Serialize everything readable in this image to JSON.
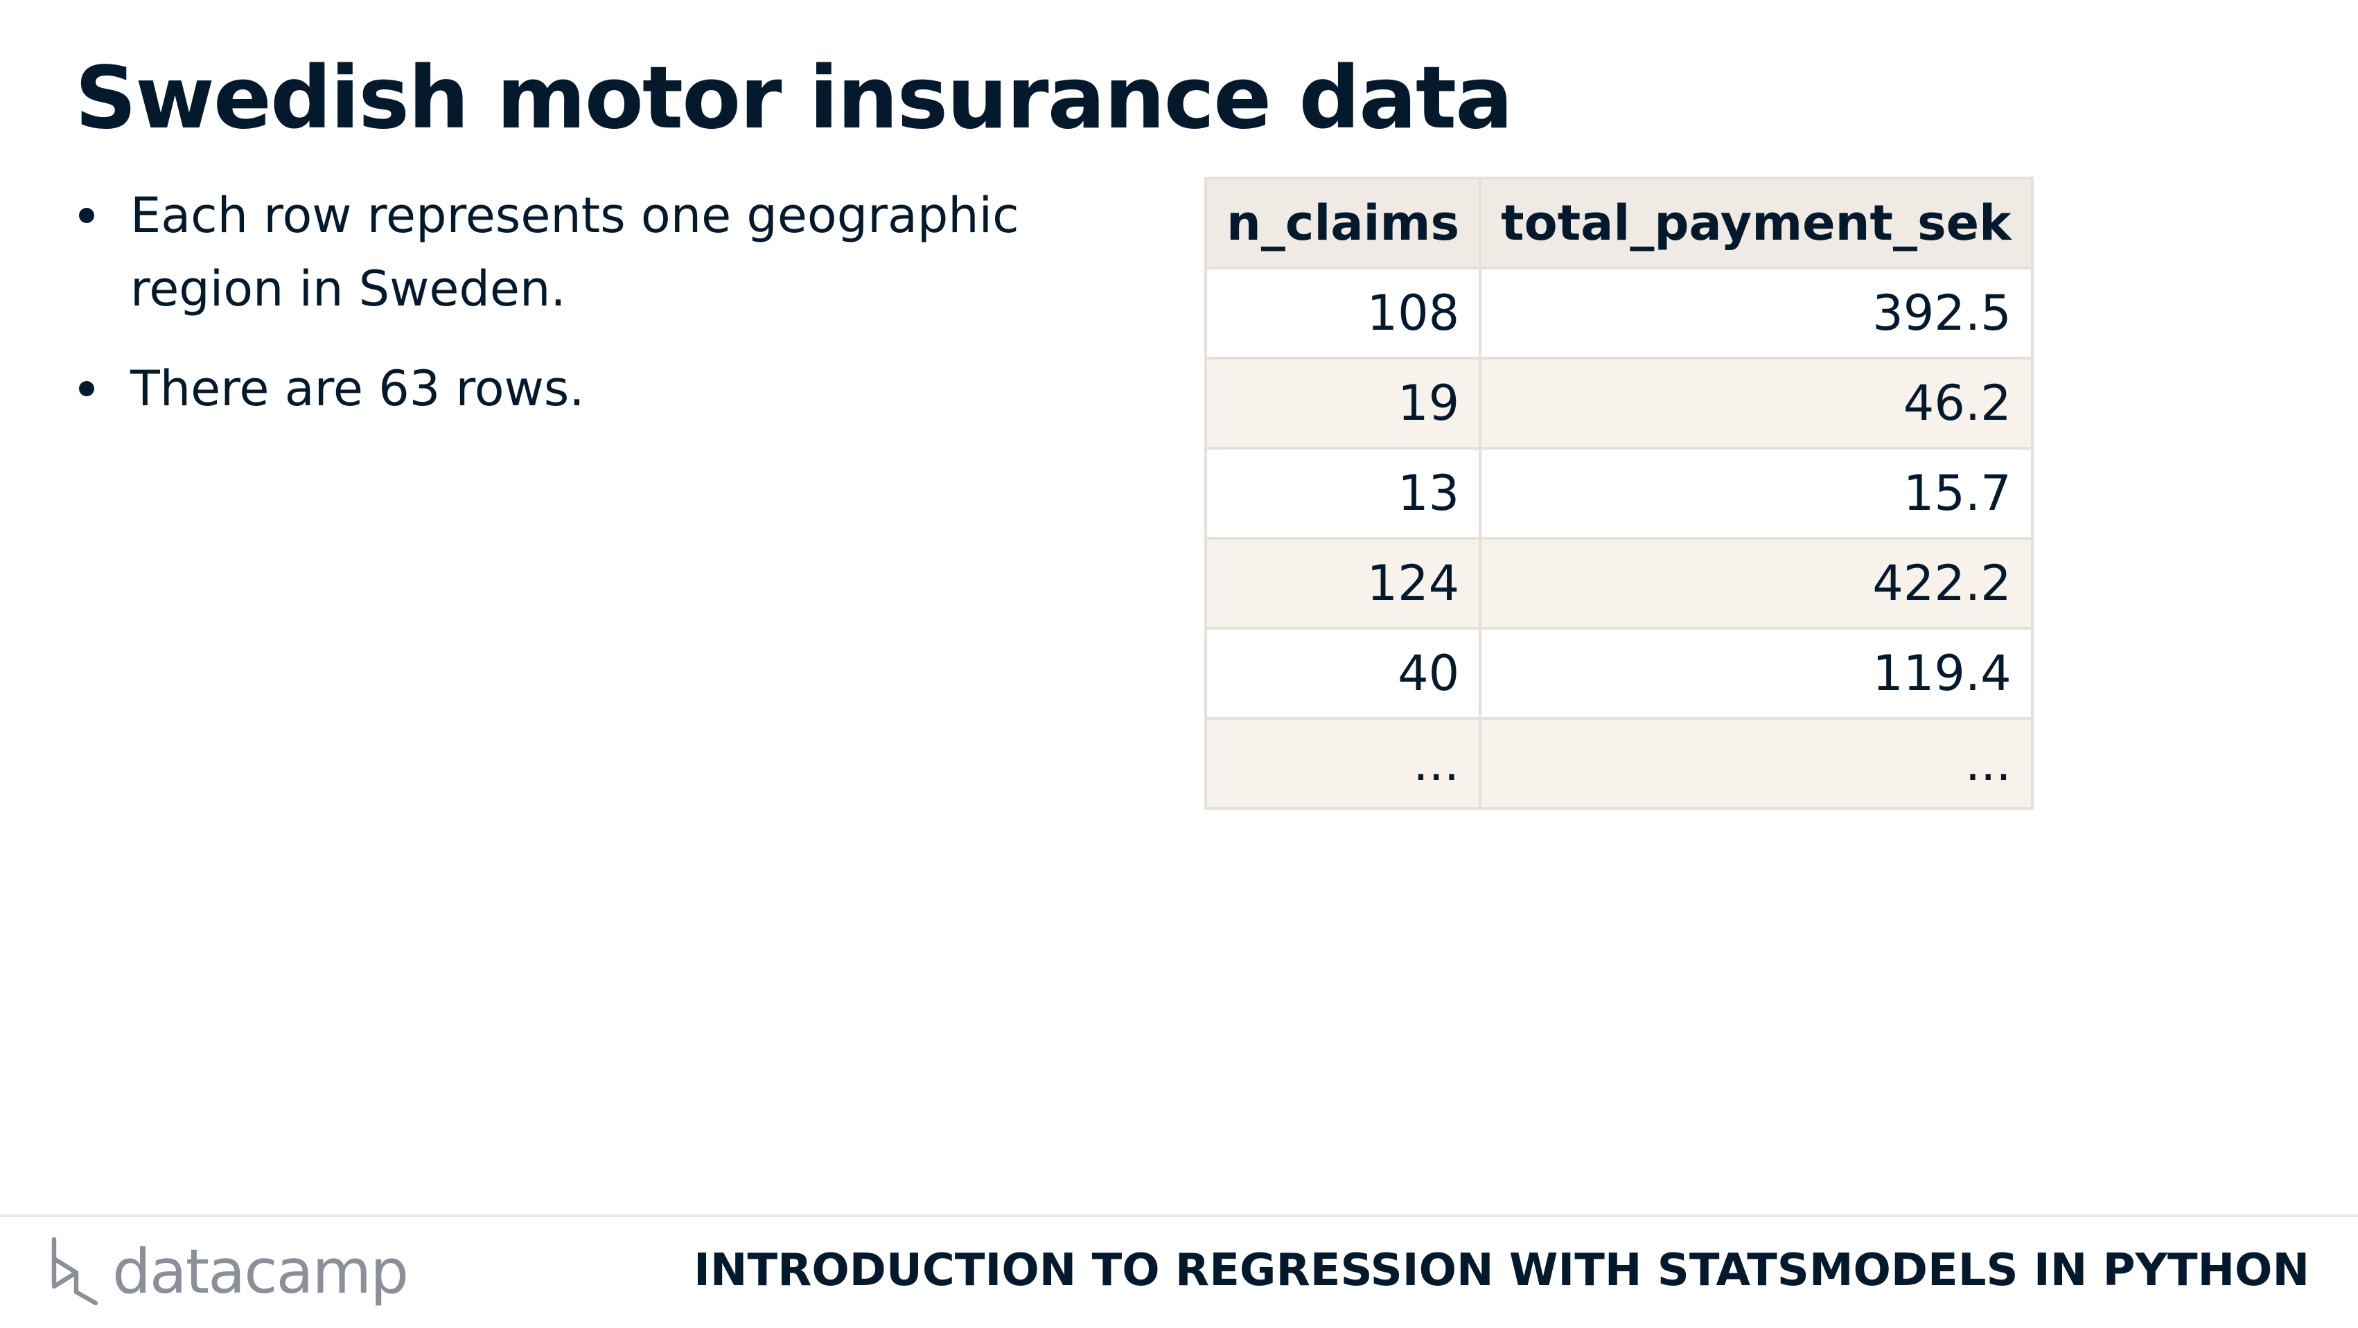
{
  "slide": {
    "title": "Swedish motor insurance data",
    "bullets": [
      "Each row represents one geographic region in Sweden.",
      "There are 63 rows."
    ]
  },
  "table": {
    "headers": [
      "n_claims",
      "total_payment_sek"
    ],
    "rows": [
      [
        "108",
        "392.5"
      ],
      [
        "19",
        "46.2"
      ],
      [
        "13",
        "15.7"
      ],
      [
        "124",
        "422.2"
      ],
      [
        "40",
        "119.4"
      ],
      [
        "...",
        "..."
      ]
    ]
  },
  "footer": {
    "logo_text": "datacamp",
    "course_title": "INTRODUCTION TO REGRESSION WITH STATSMODELS IN PYTHON"
  }
}
